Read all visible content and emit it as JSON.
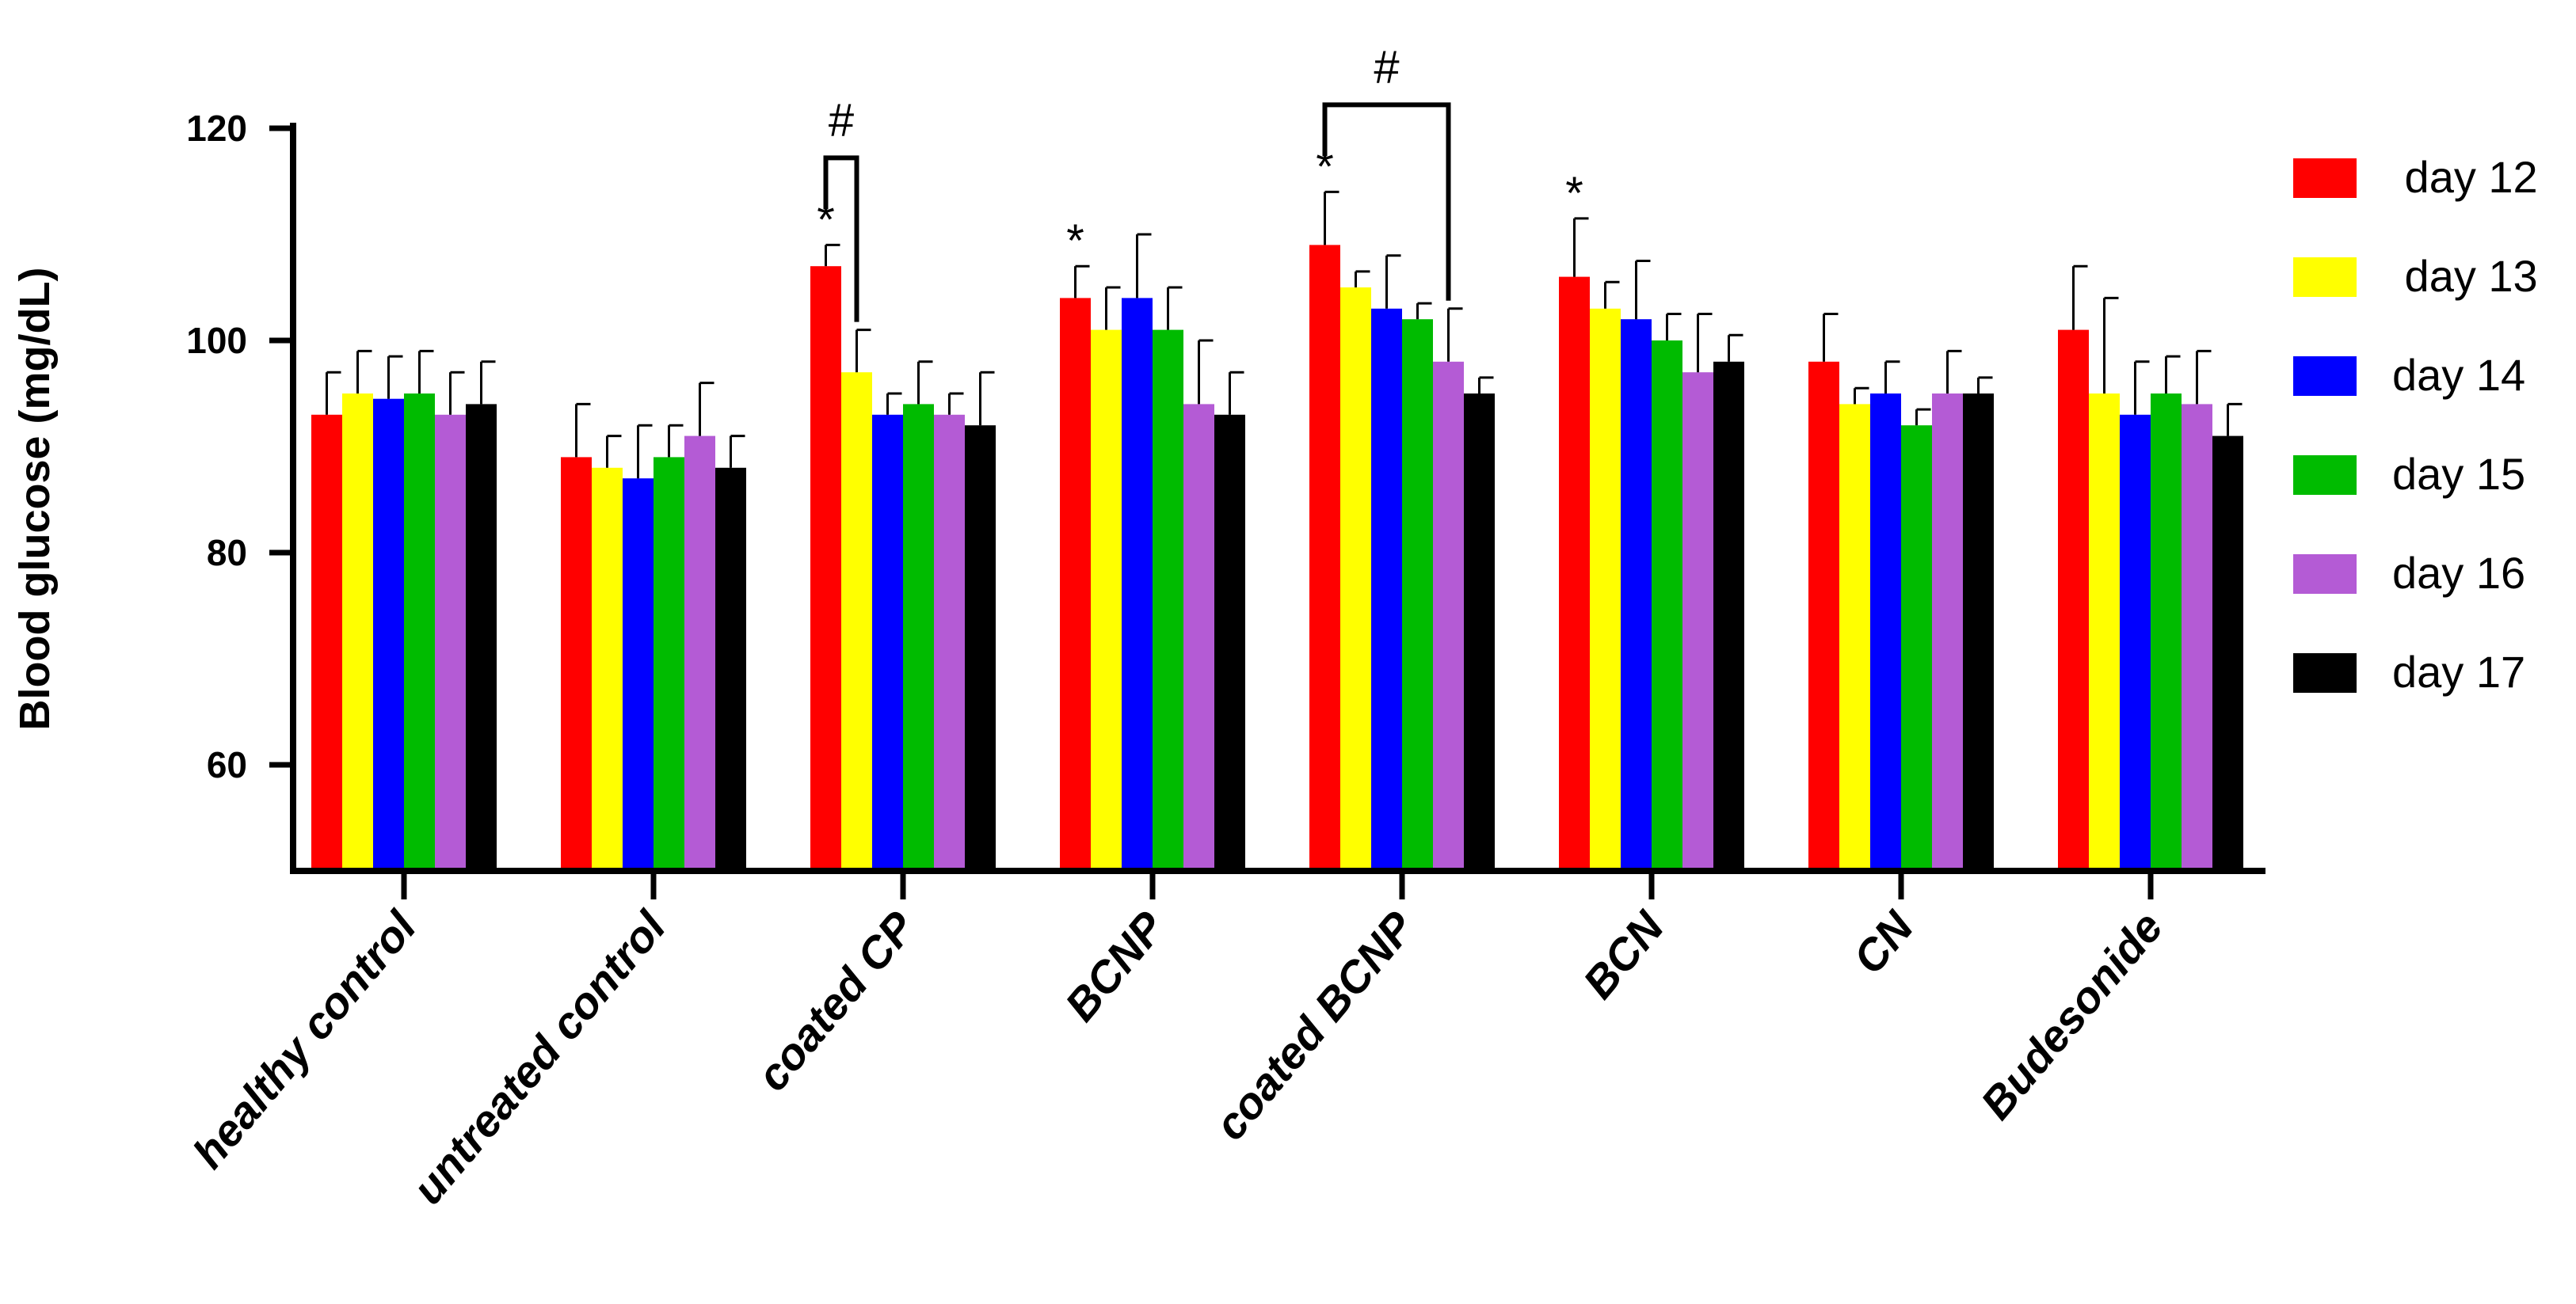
{
  "chart_data": {
    "type": "bar",
    "title": "",
    "xlabel": "",
    "ylabel": "Blood glucose (mg/dL)",
    "ylim": [
      50,
      120
    ],
    "yticks": [
      60,
      80,
      100,
      120
    ],
    "grid": false,
    "legend_position": "right",
    "categories": [
      "healthy control",
      "untreated control",
      "coated CP",
      "BCNP",
      "coated BCNP",
      "BCN",
      "CN",
      "Budesonide"
    ],
    "series": [
      {
        "name": " day 12",
        "color": "#ff0000",
        "values": [
          93,
          89,
          107,
          104,
          109,
          106,
          98,
          101
        ],
        "errors": [
          4,
          5,
          2,
          3,
          5,
          5.5,
          4.5,
          6
        ]
      },
      {
        "name": " day 13",
        "color": "#ffff00",
        "values": [
          95,
          88,
          97,
          101,
          105,
          103,
          94,
          95
        ],
        "errors": [
          4,
          3,
          4,
          4,
          1.5,
          2.5,
          1.5,
          9
        ]
      },
      {
        "name": "day 14",
        "color": "#0000ff",
        "values": [
          94.5,
          87,
          93,
          104,
          103,
          102,
          95,
          93
        ],
        "errors": [
          4,
          5,
          2,
          6,
          5,
          5.5,
          3,
          5
        ]
      },
      {
        "name": "day 15",
        "color": "#00bb00",
        "values": [
          95,
          89,
          94,
          101,
          102,
          100,
          92,
          95
        ],
        "errors": [
          4,
          3,
          4,
          4,
          1.5,
          2.5,
          1.5,
          3.5
        ]
      },
      {
        "name": "day 16",
        "color": "#b45bd5",
        "values": [
          93,
          91,
          93,
          94,
          98,
          97,
          95,
          94
        ],
        "errors": [
          4,
          5,
          2,
          6,
          5,
          5.5,
          4,
          5
        ]
      },
      {
        "name": "day 17",
        "color": "#000000",
        "values": [
          94,
          88,
          92,
          93,
          95,
          98,
          95,
          91
        ],
        "errors": [
          4,
          3,
          5,
          4,
          1.5,
          2.5,
          1.5,
          3
        ]
      }
    ],
    "annotations": [
      {
        "text": "*",
        "category": "coated CP",
        "series_index": 0
      },
      {
        "text": "*",
        "category": "BCNP",
        "series_index": 0
      },
      {
        "text": "*",
        "category": "coated BCNP",
        "series_index": 0
      },
      {
        "text": "*",
        "category": "BCN",
        "series_index": 0
      },
      {
        "text": "#",
        "category": "coated CP",
        "from_series": 0,
        "to_series": 1
      },
      {
        "text": "#",
        "category": "coated BCNP",
        "from_series": 0,
        "to_series": 4
      }
    ]
  }
}
